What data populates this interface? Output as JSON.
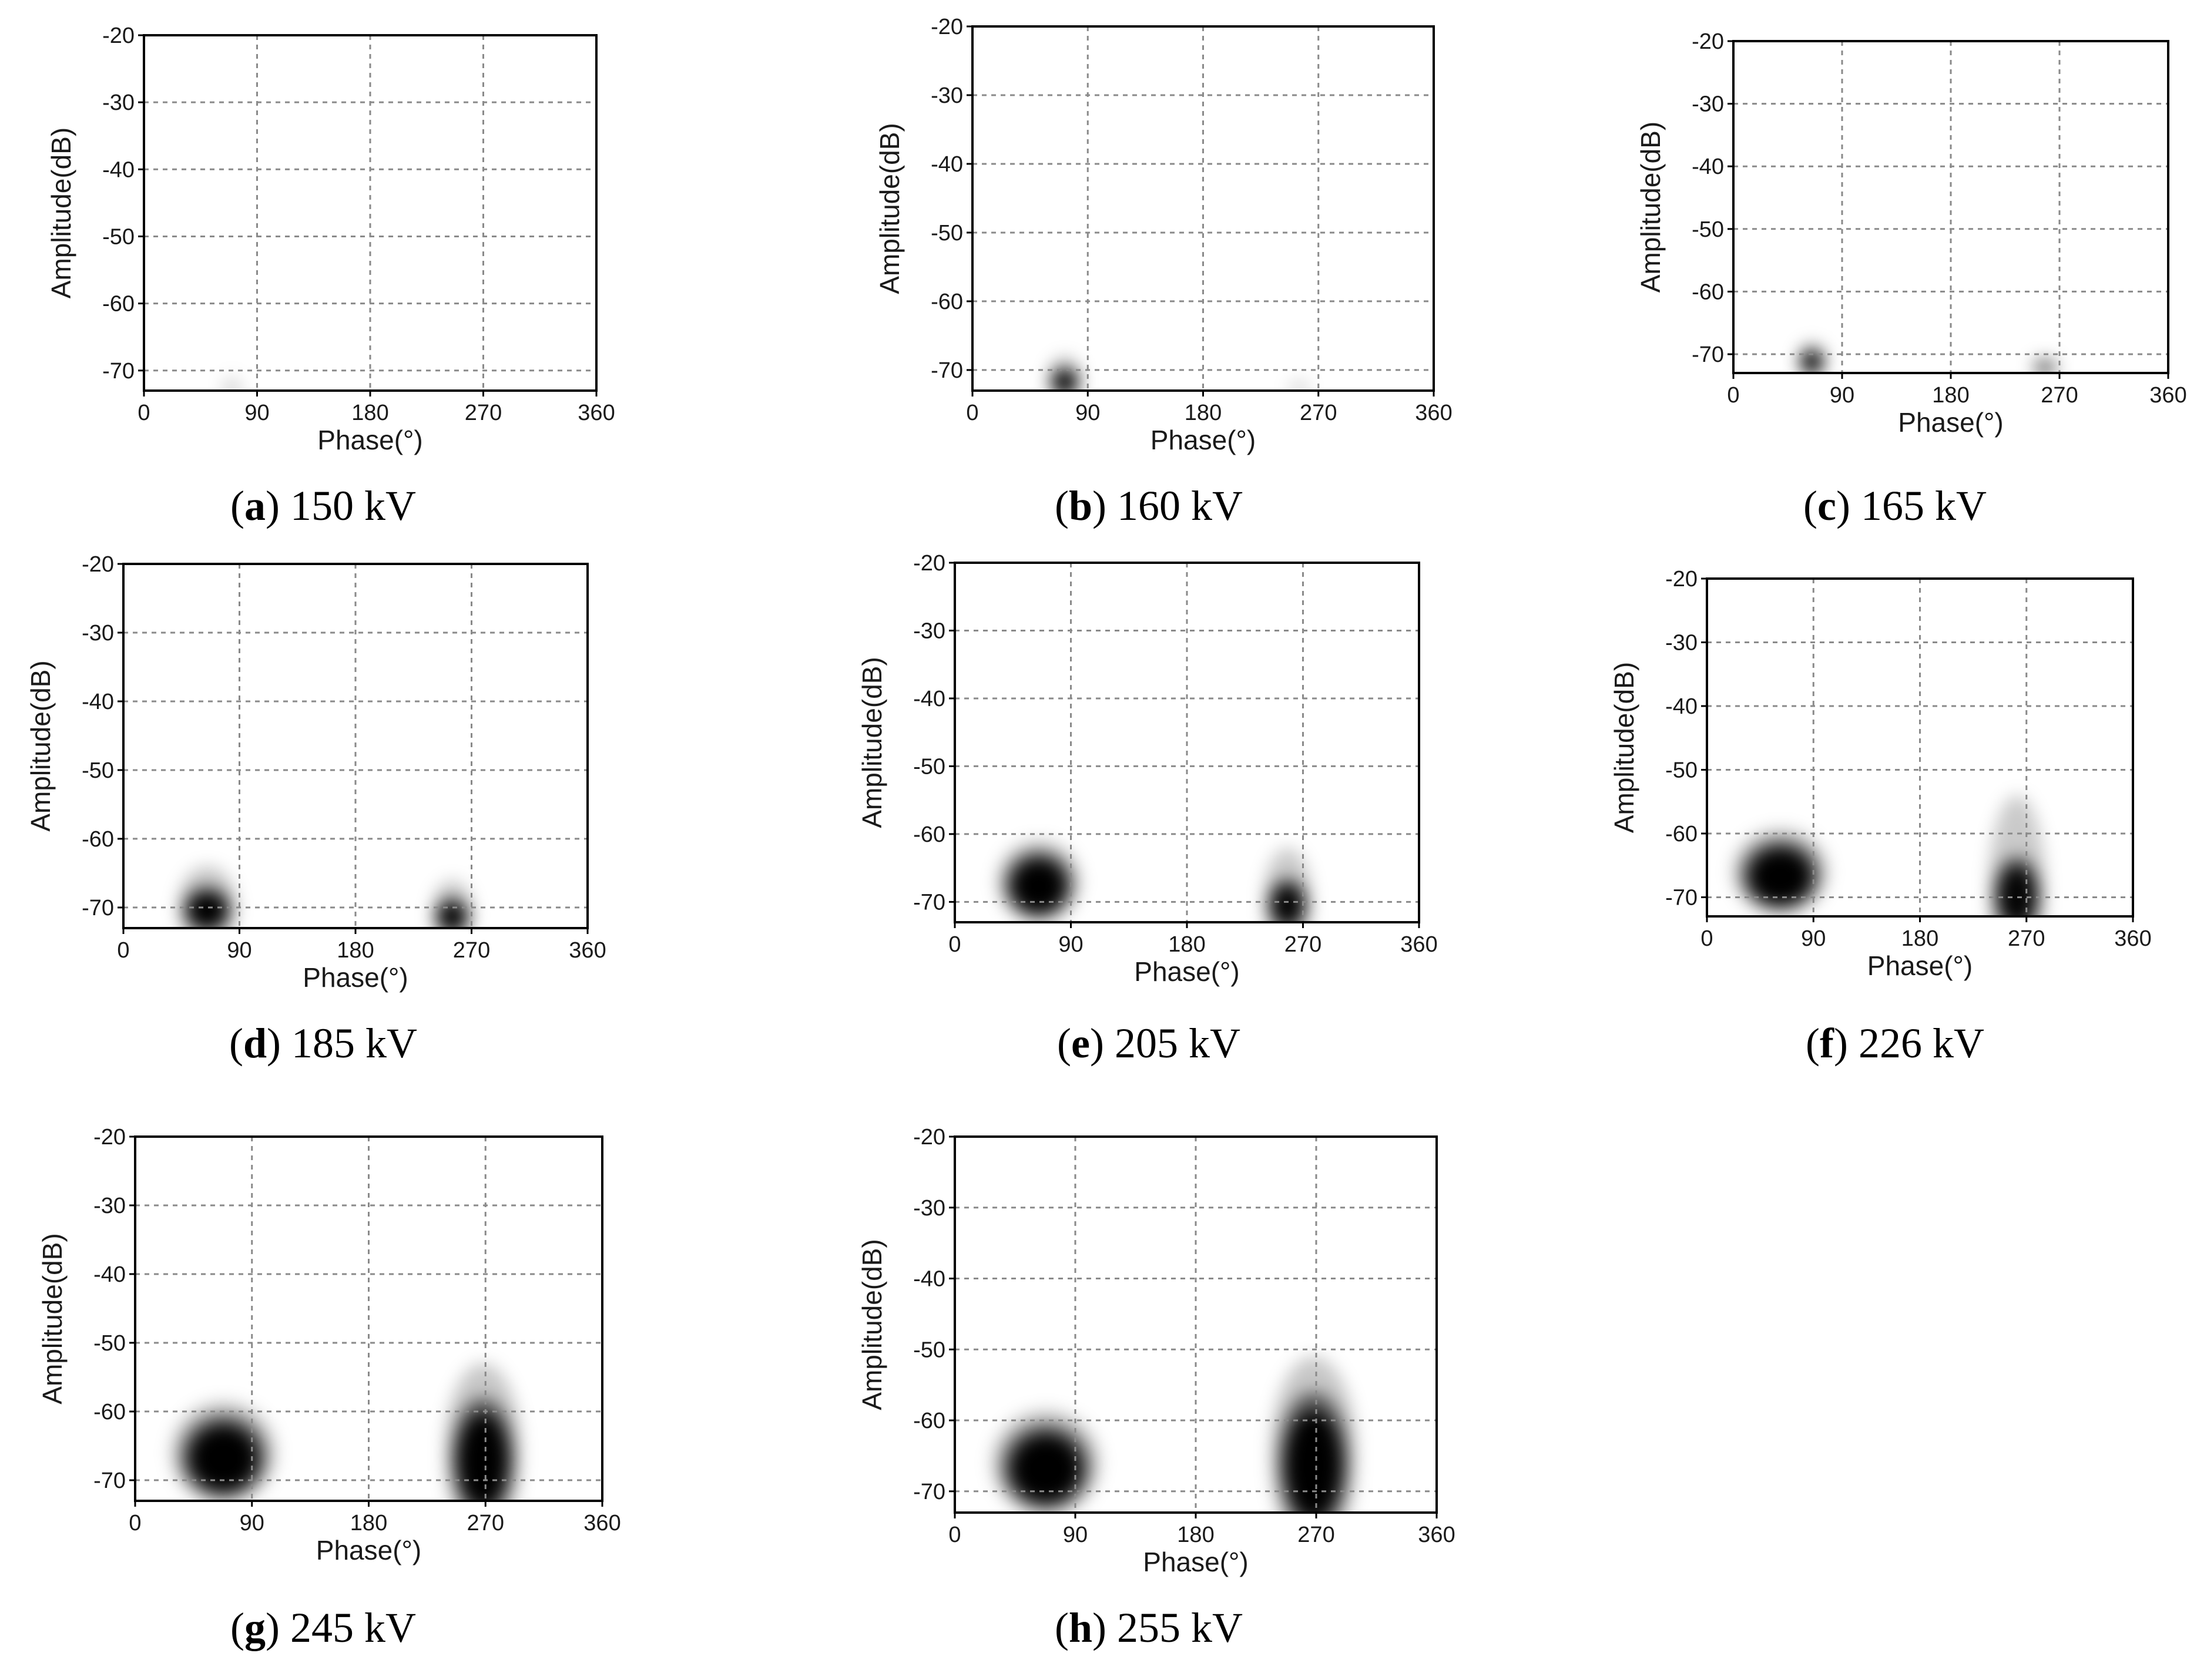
{
  "figure": {
    "description_type": "phase-resolved partial discharge patterns (grayscale density)",
    "x_label": "Phase(°)",
    "y_label": "Amplitude(dB)",
    "x_ticks": [
      "0",
      "90",
      "180",
      "270",
      "360"
    ],
    "y_ticks": [
      "-20",
      "-30",
      "-40",
      "-50",
      "-60",
      "-70"
    ]
  },
  "chart_data": [
    {
      "type": "heatmap",
      "panel": "a",
      "caption_letter": "a",
      "caption_text": " 150 kV",
      "xlabel": "Phase(°)",
      "ylabel": "Amplitude(dB)",
      "xlim": [
        0,
        360
      ],
      "ylim": [
        -73,
        -20
      ],
      "xticks": [
        0,
        90,
        180,
        270,
        360
      ],
      "yticks": [
        -20,
        -30,
        -40,
        -50,
        -60,
        -70
      ],
      "grid": true,
      "clusters": [
        {
          "phase_center": 70,
          "amp_center": -72.5,
          "phase_sigma": 7,
          "amp_sigma": 1.2,
          "intensity": 0.12,
          "top_extent_dB": -70
        }
      ]
    },
    {
      "type": "heatmap",
      "panel": "b",
      "caption_letter": "b",
      "caption_text": " 160 kV",
      "xlabel": "Phase(°)",
      "ylabel": "Amplitude(dB)",
      "xlim": [
        0,
        360
      ],
      "ylim": [
        -73,
        -20
      ],
      "xticks": [
        0,
        90,
        180,
        270,
        360
      ],
      "yticks": [
        -20,
        -30,
        -40,
        -50,
        -60,
        -70
      ],
      "grid": true,
      "clusters": [
        {
          "phase_center": 72,
          "amp_center": -71.5,
          "phase_sigma": 10,
          "amp_sigma": 1.8,
          "intensity": 1.0,
          "top_extent_dB": -68
        },
        {
          "phase_center": 255,
          "amp_center": -72.5,
          "phase_sigma": 8,
          "amp_sigma": 1.0,
          "intensity": 0.1,
          "top_extent_dB": -71
        }
      ]
    },
    {
      "type": "heatmap",
      "panel": "c",
      "caption_letter": "c",
      "caption_text": " 165 kV",
      "xlabel": "Phase(°)",
      "ylabel": "Amplitude(dB)",
      "xlim": [
        0,
        360
      ],
      "ylim": [
        -73,
        -20
      ],
      "xticks": [
        0,
        90,
        180,
        270,
        360
      ],
      "yticks": [
        -20,
        -30,
        -40,
        -50,
        -60,
        -70
      ],
      "grid": true,
      "clusters": [
        {
          "phase_center": 65,
          "amp_center": -71,
          "phase_sigma": 9,
          "amp_sigma": 1.8,
          "intensity": 1.0,
          "top_extent_dB": -68
        },
        {
          "phase_center": 258,
          "amp_center": -72,
          "phase_sigma": 9,
          "amp_sigma": 1.2,
          "intensity": 0.45,
          "top_extent_dB": -70
        }
      ]
    },
    {
      "type": "heatmap",
      "panel": "d",
      "caption_letter": "d",
      "caption_text": " 185 kV",
      "xlabel": "Phase(°)",
      "ylabel": "Amplitude(dB)",
      "xlim": [
        0,
        360
      ],
      "ylim": [
        -73,
        -20
      ],
      "xticks": [
        0,
        90,
        180,
        270,
        360
      ],
      "yticks": [
        -20,
        -30,
        -40,
        -50,
        -60,
        -70
      ],
      "grid": true,
      "clusters": [
        {
          "phase_center": 65,
          "amp_center": -70,
          "phase_sigma": 17,
          "amp_sigma": 3.0,
          "intensity": 1.0,
          "top_extent_dB": -64
        },
        {
          "phase_center": 255,
          "amp_center": -71,
          "phase_sigma": 12,
          "amp_sigma": 2.4,
          "intensity": 0.95,
          "top_extent_dB": -66
        }
      ]
    },
    {
      "type": "heatmap",
      "panel": "e",
      "caption_letter": "e",
      "caption_text": " 205 kV",
      "xlabel": "Phase(°)",
      "ylabel": "Amplitude(dB)",
      "xlim": [
        0,
        360
      ],
      "ylim": [
        -73,
        -20
      ],
      "xticks": [
        0,
        90,
        180,
        270,
        360
      ],
      "yticks": [
        -20,
        -30,
        -40,
        -50,
        -60,
        -70
      ],
      "grid": true,
      "clusters": [
        {
          "phase_center": 65,
          "amp_center": -67,
          "phase_sigma": 24,
          "amp_sigma": 4.5,
          "intensity": 1.0,
          "top_extent_dB": -61
        },
        {
          "phase_center": 258,
          "amp_center": -70,
          "phase_sigma": 14,
          "amp_sigma": 3.5,
          "intensity": 0.95,
          "top_extent_dB": -62
        }
      ]
    },
    {
      "type": "heatmap",
      "panel": "f",
      "caption_letter": "f",
      "caption_text": " 226 kV",
      "xlabel": "Phase(°)",
      "ylabel": "Amplitude(dB)",
      "xlim": [
        0,
        360
      ],
      "ylim": [
        -73,
        -20
      ],
      "xticks": [
        0,
        90,
        180,
        270,
        360
      ],
      "yticks": [
        -20,
        -30,
        -40,
        -50,
        -60,
        -70
      ],
      "grid": true,
      "clusters": [
        {
          "phase_center": 62,
          "amp_center": -66,
          "phase_sigma": 30,
          "amp_sigma": 5.0,
          "intensity": 1.0,
          "top_extent_dB": -60
        },
        {
          "phase_center": 262,
          "amp_center": -69,
          "phase_sigma": 18,
          "amp_sigma": 5.5,
          "intensity": 0.95,
          "top_extent_dB": -54
        }
      ]
    },
    {
      "type": "heatmap",
      "panel": "g",
      "caption_letter": "g",
      "caption_text": " 245 kV",
      "xlabel": "Phase(°)",
      "ylabel": "Amplitude(dB)",
      "xlim": [
        0,
        360
      ],
      "ylim": [
        -73,
        -20
      ],
      "xticks": [
        0,
        90,
        180,
        270,
        360
      ],
      "yticks": [
        -20,
        -30,
        -40,
        -50,
        -60,
        -70
      ],
      "grid": true,
      "clusters": [
        {
          "phase_center": 68,
          "amp_center": -66,
          "phase_sigma": 30,
          "amp_sigma": 5.5,
          "intensity": 1.0,
          "top_extent_dB": -60
        },
        {
          "phase_center": 268,
          "amp_center": -66,
          "phase_sigma": 22,
          "amp_sigma": 8.0,
          "intensity": 1.0,
          "top_extent_dB": -53
        }
      ]
    },
    {
      "type": "heatmap",
      "panel": "h",
      "caption_letter": "h",
      "caption_text": " 255 kV",
      "xlabel": "Phase(°)",
      "ylabel": "Amplitude(dB)",
      "xlim": [
        0,
        360
      ],
      "ylim": [
        -73,
        -20
      ],
      "xticks": [
        0,
        90,
        180,
        270,
        360
      ],
      "yticks": [
        -20,
        -30,
        -40,
        -50,
        -60,
        -70
      ],
      "grid": true,
      "clusters": [
        {
          "phase_center": 68,
          "amp_center": -66,
          "phase_sigma": 30,
          "amp_sigma": 5.5,
          "intensity": 1.0,
          "top_extent_dB": -59
        },
        {
          "phase_center": 268,
          "amp_center": -65,
          "phase_sigma": 24,
          "amp_sigma": 9.0,
          "intensity": 1.0,
          "top_extent_dB": -51
        }
      ]
    }
  ]
}
